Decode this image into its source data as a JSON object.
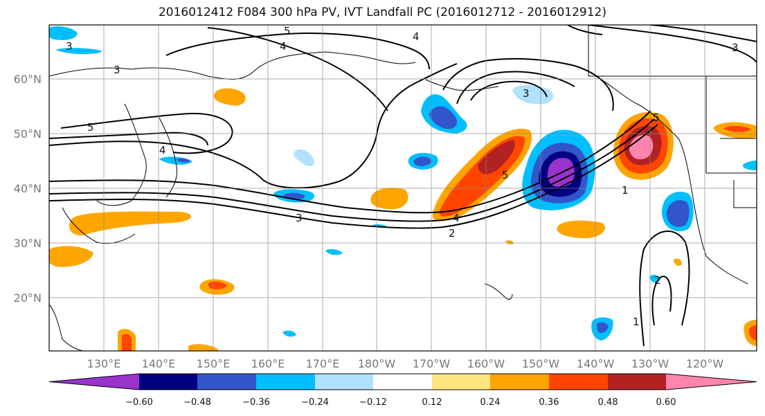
{
  "title": "2016012412 F084 300 hPa PV, IVT Landfall PC (2016012712 - 2016012912)",
  "lat_labels": [
    "60°N",
    "50°N",
    "40°N",
    "30°N",
    "20°N"
  ],
  "lon_labels": [
    "130°E",
    "140°E",
    "150°E",
    "160°E",
    "170°E",
    "180°W",
    "170°W",
    "160°W",
    "150°W",
    "140°W",
    "130°W",
    "120°W"
  ],
  "colorbar": {
    "ticks": [
      "−0.60",
      "−0.48",
      "−0.36",
      "−0.24",
      "−0.12",
      "0.12",
      "0.24",
      "0.36",
      "0.48",
      "0.60"
    ],
    "colors": [
      "#9933cc",
      "#000080",
      "#3355cc",
      "#00bfff",
      "#b0e2ff",
      "#ffffff",
      "#ffe680",
      "#ffa500",
      "#ff4500",
      "#b22222",
      "#ff85b0"
    ]
  },
  "contour_labels": [
    "5",
    "4",
    "3",
    "3",
    "2",
    "1",
    "1",
    "2",
    "3",
    "4",
    "5",
    "3",
    "4",
    "5",
    "3",
    "4",
    "5"
  ]
}
